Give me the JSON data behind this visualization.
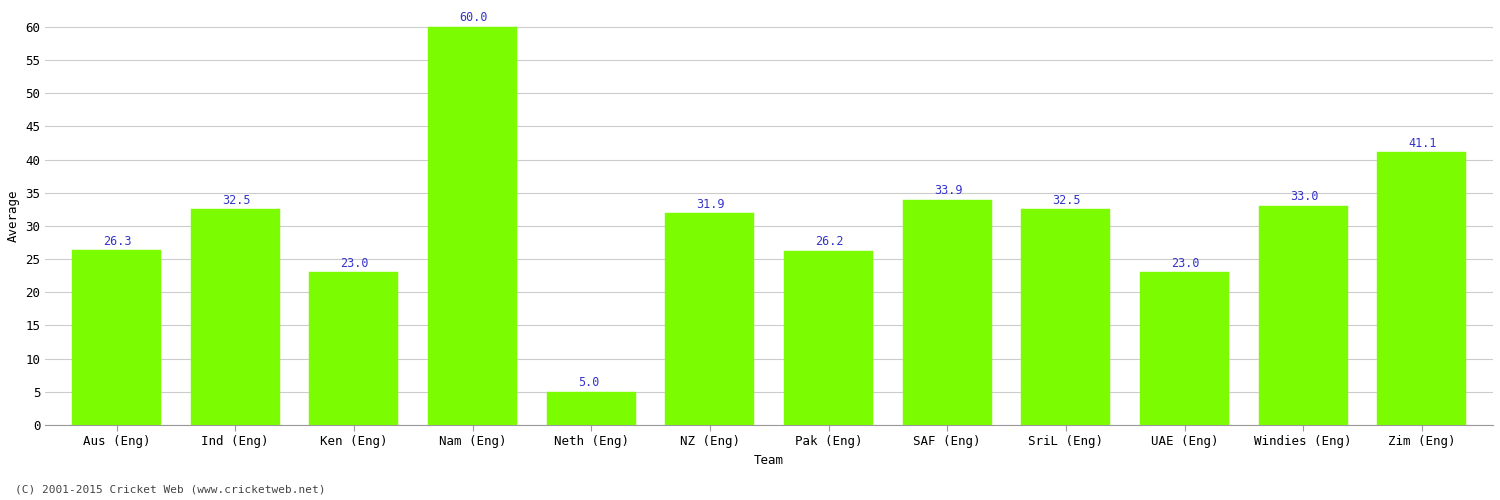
{
  "categories": [
    "Aus (Eng)",
    "Ind (Eng)",
    "Ken (Eng)",
    "Nam (Eng)",
    "Neth (Eng)",
    "NZ (Eng)",
    "Pak (Eng)",
    "SAF (Eng)",
    "SriL (Eng)",
    "UAE (Eng)",
    "Windies (Eng)",
    "Zim (Eng)"
  ],
  "values": [
    26.3,
    32.5,
    23.0,
    60.0,
    5.0,
    31.9,
    26.2,
    33.9,
    32.5,
    23.0,
    33.0,
    41.1
  ],
  "bar_color": "#7CFC00",
  "bar_edge_color": "#7CFC00",
  "value_color": "#3333CC",
  "xlabel": "Team",
  "ylabel": "Average",
  "ylim": [
    0,
    63
  ],
  "yticks": [
    0,
    5,
    10,
    15,
    20,
    25,
    30,
    35,
    40,
    45,
    50,
    55,
    60
  ],
  "background_color": "#FFFFFF",
  "grid_color": "#CCCCCC",
  "footer": "(C) 2001-2015 Cricket Web (www.cricketweb.net)",
  "value_fontsize": 8.5,
  "axis_fontsize": 9,
  "label_fontsize": 9,
  "footer_fontsize": 8
}
